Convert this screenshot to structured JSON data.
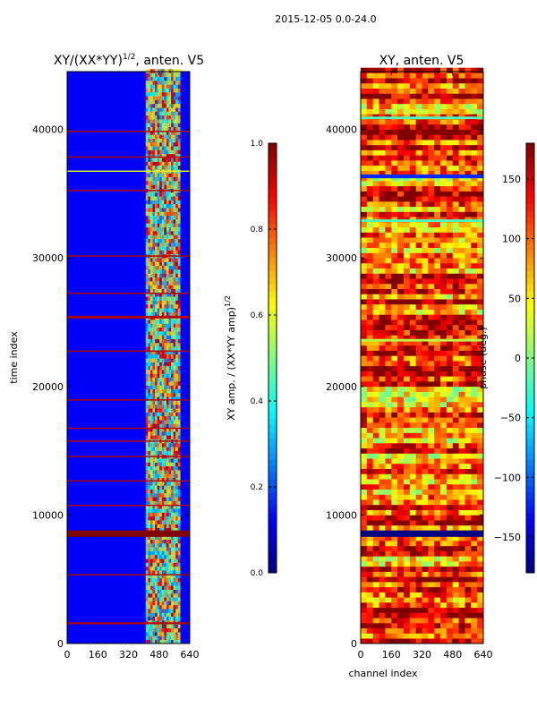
{
  "figure_title": "2015-12-05 0.0-24.0",
  "chart_data": [
    {
      "type": "heatmap",
      "title": "XY/(XX*YY)",
      "title_superscript": "1/2",
      "title_suffix": ", anten. V5",
      "xlabel": "",
      "ylabel": "time index",
      "xlim": [
        0,
        640
      ],
      "ylim": [
        0,
        44500
      ],
      "xticks": [
        "0",
        "160",
        "320",
        "480",
        "640"
      ],
      "xtick_values": [
        0,
        160,
        320,
        480,
        640
      ],
      "yticks": [
        "0",
        "10000",
        "20000",
        "30000",
        "40000"
      ],
      "ytick_values": [
        0,
        10000,
        20000,
        30000,
        40000
      ],
      "colormap": "jet",
      "colorbar": {
        "label": "XY amp. / (XX*YY amp)",
        "label_superscript": "1/2",
        "range": [
          0.0,
          1.0
        ],
        "ticks": [
          "0.0",
          "0.2",
          "0.4",
          "0.6",
          "0.8",
          "1.0"
        ],
        "tick_values": [
          0.0,
          0.2,
          0.4,
          0.6,
          0.8,
          1.0
        ]
      },
      "row_bands": [
        {
          "t0": 8300,
          "t1": 8800,
          "value": 1.0
        },
        {
          "t0": 1500,
          "t1": 1650,
          "value": 0.95
        },
        {
          "t0": 5300,
          "t1": 5400,
          "value": 0.95
        },
        {
          "t0": 10700,
          "t1": 10800,
          "value": 0.95
        },
        {
          "t0": 12600,
          "t1": 12700,
          "value": 0.95
        },
        {
          "t0": 14500,
          "t1": 14600,
          "value": 0.95
        },
        {
          "t0": 15700,
          "t1": 15800,
          "value": 0.95
        },
        {
          "t0": 16700,
          "t1": 16800,
          "value": 0.95
        },
        {
          "t0": 18900,
          "t1": 19000,
          "value": 0.95
        },
        {
          "t0": 22700,
          "t1": 22800,
          "value": 0.95
        },
        {
          "t0": 25300,
          "t1": 25500,
          "value": 0.95
        },
        {
          "t0": 27200,
          "t1": 27300,
          "value": 0.95
        },
        {
          "t0": 30100,
          "t1": 30200,
          "value": 0.95
        },
        {
          "t0": 35200,
          "t1": 35300,
          "value": 0.95
        },
        {
          "t0": 36700,
          "t1": 36800,
          "value": 0.6
        },
        {
          "t0": 37800,
          "t1": 37900,
          "value": 0.95
        },
        {
          "t0": 39800,
          "t1": 39900,
          "value": 0.95
        }
      ],
      "active_channel_range": [
        410,
        590
      ],
      "background_value": 0.12
    },
    {
      "type": "heatmap",
      "title": "XY, anten. V5",
      "title_superscript": "",
      "title_suffix": "",
      "xlabel": "channel index",
      "ylabel": "",
      "xlim": [
        0,
        640
      ],
      "ylim": [
        0,
        44500
      ],
      "xticks": [
        "0",
        "160",
        "320",
        "480",
        "640"
      ],
      "xtick_values": [
        0,
        160,
        320,
        480,
        640
      ],
      "yticks": [
        "0",
        "10000",
        "20000",
        "30000",
        "40000"
      ],
      "ytick_values": [
        0,
        10000,
        20000,
        30000,
        40000
      ],
      "colormap": "jet",
      "colorbar": {
        "label": "phase (deg.)",
        "label_superscript": "",
        "range": [
          -180,
          180
        ],
        "ticks": [
          "−150",
          "−100",
          "−50",
          "0",
          "50",
          "100",
          "150"
        ],
        "tick_values": [
          -150,
          -100,
          -50,
          0,
          50,
          100,
          150
        ]
      },
      "row_bands": [
        {
          "t0": 8300,
          "t1": 8800,
          "value": -180
        },
        {
          "t0": 36200,
          "t1": 36500,
          "value": -120
        },
        {
          "t0": 32800,
          "t1": 33000,
          "value": -20
        },
        {
          "t0": 40800,
          "t1": 41000,
          "value": -20
        },
        {
          "t0": 23500,
          "t1": 23700,
          "value": 20
        }
      ],
      "background_value": 140
    }
  ]
}
